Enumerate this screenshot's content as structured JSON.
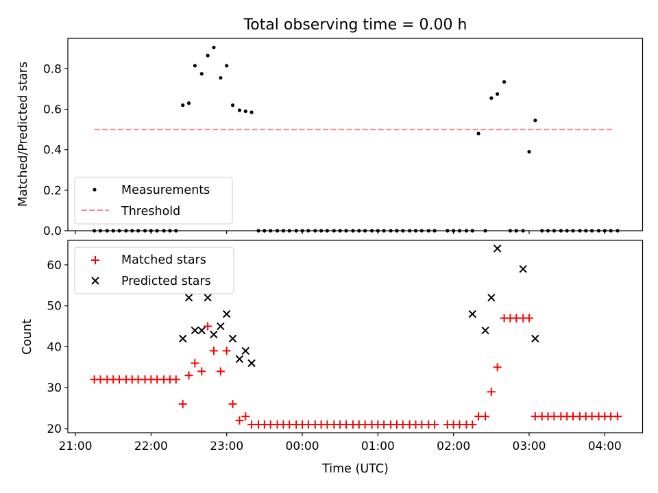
{
  "title": "Total observing time = 0.00 h",
  "colors": {
    "measurements": "#000000",
    "threshold": "#ff8080",
    "matched": "#ff0000",
    "predicted": "#000000"
  },
  "x_ticks": [
    "21:00",
    "22:00",
    "23:00",
    "00:00",
    "01:00",
    "02:00",
    "03:00",
    "04:00"
  ],
  "xlabel": "Time (UTC)",
  "chart_data": [
    {
      "type": "scatter",
      "ylabel": "Matched/Predicted stars",
      "ylim": [
        0,
        0.95
      ],
      "y_ticks": [
        "0.0",
        "0.2",
        "0.4",
        "0.6",
        "0.8"
      ],
      "legend": {
        "placement": "lower-left",
        "entries": [
          "Measurements",
          "Threshold"
        ]
      },
      "threshold": 0.5,
      "threshold_x": [
        21.25,
        28.1
      ],
      "series": [
        {
          "name": "Measurements",
          "x": [
            21.25,
            21.33,
            21.42,
            21.5,
            21.58,
            21.67,
            21.75,
            21.83,
            21.92,
            22.0,
            22.08,
            22.17,
            22.25,
            22.33,
            22.42,
            22.5,
            22.58,
            22.67,
            22.75,
            22.83,
            22.92,
            23.0,
            23.08,
            23.17,
            23.25,
            23.33,
            23.42,
            23.5,
            23.58,
            23.67,
            23.75,
            23.83,
            23.92,
            24.0,
            24.08,
            24.17,
            24.25,
            24.33,
            24.42,
            24.5,
            24.58,
            24.67,
            24.75,
            24.83,
            24.92,
            25.0,
            25.08,
            25.17,
            25.25,
            25.33,
            25.42,
            25.5,
            25.58,
            25.67,
            25.75,
            25.92,
            26.0,
            26.08,
            26.17,
            26.25,
            26.33,
            26.42,
            26.5,
            26.58,
            26.67,
            26.75,
            26.83,
            26.92,
            27.0,
            27.08,
            27.17,
            27.25,
            27.33,
            27.42,
            27.5,
            27.58,
            27.67,
            27.75,
            27.83,
            27.92,
            28.0,
            28.08,
            28.17
          ],
          "y": [
            0,
            0,
            0,
            0,
            0,
            0,
            0,
            0,
            0,
            0,
            0,
            0,
            0,
            0,
            0.62,
            0.63,
            0.815,
            0.775,
            0.865,
            0.905,
            0.755,
            0.815,
            0.62,
            0.595,
            0.59,
            0.585,
            0,
            0,
            0,
            0,
            0,
            0,
            0,
            0,
            0,
            0,
            0,
            0,
            0,
            0,
            0,
            0,
            0,
            0,
            0,
            0,
            0,
            0,
            0,
            0,
            0,
            0,
            0,
            0,
            0,
            0,
            0,
            0,
            0,
            0,
            0.48,
            0,
            0.655,
            0.675,
            0.735,
            0,
            0,
            0,
            0.39,
            0.545,
            0,
            0,
            0,
            0,
            0,
            0,
            0,
            0,
            0,
            0,
            0,
            0,
            0
          ]
        }
      ]
    },
    {
      "type": "scatter",
      "ylabel": "Count",
      "ylim": [
        19,
        66
      ],
      "y_ticks": [
        "20",
        "30",
        "40",
        "50",
        "60"
      ],
      "legend": {
        "placement": "upper-left",
        "entries": [
          "Matched stars",
          "Predicted stars"
        ]
      },
      "series": [
        {
          "name": "Matched stars",
          "x": [
            21.25,
            21.33,
            21.42,
            21.5,
            21.58,
            21.67,
            21.75,
            21.83,
            21.92,
            22.0,
            22.08,
            22.17,
            22.25,
            22.33,
            22.42,
            22.5,
            22.58,
            22.67,
            22.75,
            22.83,
            22.92,
            23.0,
            23.08,
            23.17,
            23.25,
            23.33,
            23.42,
            23.5,
            23.58,
            23.67,
            23.75,
            23.83,
            23.92,
            24.0,
            24.08,
            24.17,
            24.25,
            24.33,
            24.42,
            24.5,
            24.58,
            24.67,
            24.75,
            24.83,
            24.92,
            25.0,
            25.08,
            25.17,
            25.25,
            25.33,
            25.42,
            25.5,
            25.58,
            25.67,
            25.75,
            25.92,
            26.0,
            26.08,
            26.17,
            26.25,
            26.33,
            26.42,
            26.5,
            26.58,
            26.67,
            26.75,
            26.83,
            26.92,
            27.0,
            27.08,
            27.17,
            27.25,
            27.33,
            27.42,
            27.5,
            27.58,
            27.67,
            27.75,
            27.83,
            27.92,
            28.0,
            28.08,
            28.17
          ],
          "y": [
            32,
            32,
            32,
            32,
            32,
            32,
            32,
            32,
            32,
            32,
            32,
            32,
            32,
            32,
            26,
            33,
            36,
            34,
            45,
            39,
            34,
            39,
            26,
            22,
            23,
            21,
            21,
            21,
            21,
            21,
            21,
            21,
            21,
            21,
            21,
            21,
            21,
            21,
            21,
            21,
            21,
            21,
            21,
            21,
            21,
            21,
            21,
            21,
            21,
            21,
            21,
            21,
            21,
            21,
            21,
            21,
            21,
            21,
            21,
            21,
            23,
            23,
            29,
            35,
            47,
            47,
            47,
            47,
            47,
            23,
            23,
            23,
            23,
            23,
            23,
            23,
            23,
            23,
            23,
            23,
            23,
            23,
            23
          ]
        },
        {
          "name": "Predicted stars",
          "x": [
            22.42,
            22.5,
            22.58,
            22.67,
            22.75,
            22.83,
            22.92,
            23.0,
            23.08,
            23.17,
            23.25,
            23.33,
            26.25,
            26.42,
            26.5,
            26.58,
            26.92,
            27.08
          ],
          "y": [
            42,
            52,
            44,
            44,
            52,
            43,
            45,
            48,
            42,
            37,
            39,
            36,
            48,
            44,
            52,
            64,
            59,
            42
          ]
        }
      ]
    }
  ]
}
